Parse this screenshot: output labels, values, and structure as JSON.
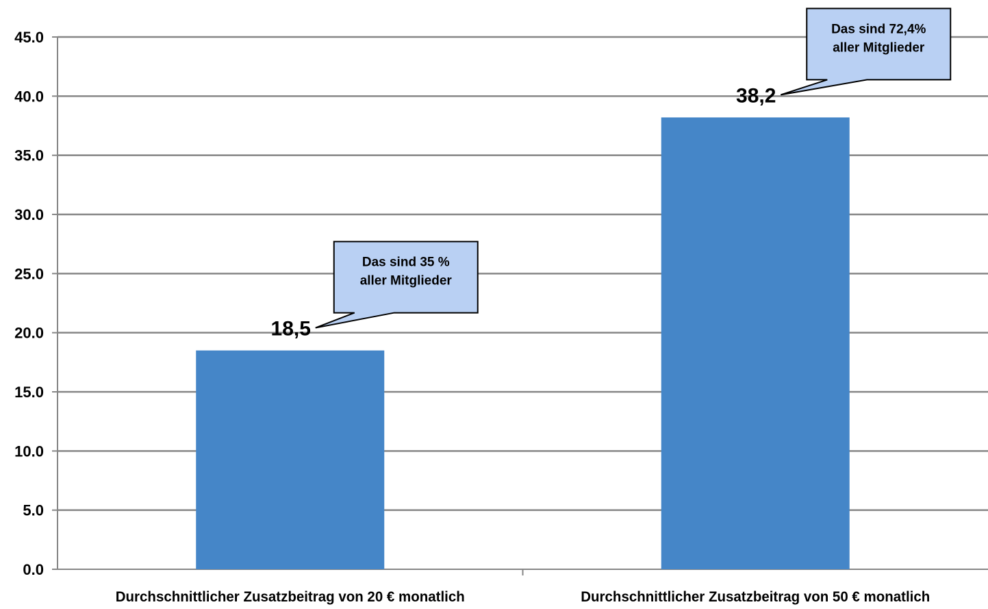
{
  "chart_data": {
    "type": "bar",
    "categories": [
      "Durchschnittlicher Zusatzbeitrag von 20 € monatlich",
      "Durchschnittlicher Zusatzbeitrag von 50 € monatlich"
    ],
    "values": [
      18.5,
      38.2
    ],
    "value_labels": [
      "18,5",
      "38,2"
    ],
    "ylim": [
      0,
      45
    ],
    "yticks": [
      0,
      5,
      10,
      15,
      20,
      25,
      30,
      35,
      40,
      45
    ],
    "ytick_labels": [
      "0.0",
      "5.0",
      "10.0",
      "15.0",
      "20.0",
      "25.0",
      "30.0",
      "35.0",
      "40.0",
      "45.0"
    ],
    "grid": true,
    "legend": "none",
    "title": "",
    "xlabel": "",
    "ylabel": "",
    "annotations": [
      {
        "category_index": 0,
        "lines": [
          "Das sind 35 %",
          "aller Mitglieder"
        ]
      },
      {
        "category_index": 1,
        "lines": [
          "Das sind 72,4%",
          "aller Mitglieder"
        ]
      }
    ],
    "colors": {
      "bar": "#4586c8",
      "grid": "#868686",
      "callout_fill": "#b9d0f3",
      "callout_border": "#000000"
    }
  }
}
